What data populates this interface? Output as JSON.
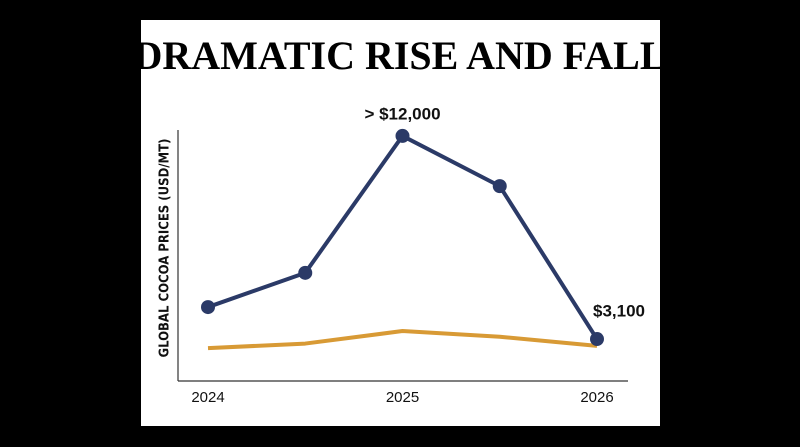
{
  "chart_data": {
    "type": "line",
    "title": "DRAMATIC RISE AND FALL",
    "y_label": "GLOBAL COCOA PRICES (USD/MT)",
    "categories": [
      "2024",
      null,
      "2025",
      null,
      "2026"
    ],
    "ylim": [
      1260,
      12260
    ],
    "series": [
      {
        "color": "#2b3a67",
        "markers": true,
        "values": [
          4500,
          6000,
          12000,
          9800,
          3100
        ],
        "value_labels": [
          null,
          null,
          "> $12,000",
          null,
          "$3,100"
        ]
      },
      {
        "color": "#d89a35",
        "markers": false,
        "values": [
          2700,
          2900,
          3450,
          3200,
          2800
        ]
      }
    ]
  }
}
